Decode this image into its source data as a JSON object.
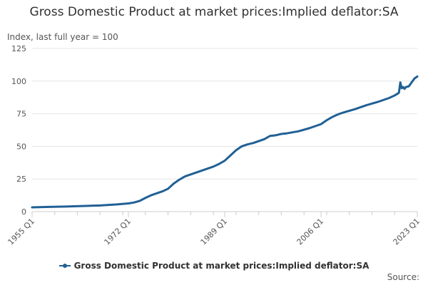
{
  "chart_data": {
    "type": "line",
    "title": "Gross Domestic Product at market prices:Implied deflator:SA",
    "ylabel": "Index, last full year = 100",
    "xlabel": "",
    "ylim": [
      0,
      125
    ],
    "y_ticks": [
      0,
      25,
      50,
      75,
      100,
      125
    ],
    "x_range": [
      1955.0,
      2023.0
    ],
    "x_ticks": [
      {
        "label": "1955 Q1",
        "x": 1955.0
      },
      {
        "label": "1972 Q1",
        "x": 1972.0
      },
      {
        "label": "1989 Q1",
        "x": 1989.0
      },
      {
        "label": "2006 Q1",
        "x": 2006.0
      },
      {
        "label": "2023 Q1",
        "x": 2023.0
      }
    ],
    "grid": true,
    "legend_position": "bottom",
    "series": [
      {
        "name": "Gross Domestic Product at market prices:Implied deflator:SA",
        "color": "#206095",
        "x": [
          1955,
          1958,
          1961,
          1964,
          1967,
          1970,
          1972,
          1973,
          1974,
          1975,
          1976,
          1977,
          1978,
          1979,
          1980,
          1981,
          1982,
          1983,
          1984,
          1985,
          1986,
          1987,
          1988,
          1989,
          1990,
          1991,
          1992,
          1993,
          1994,
          1995,
          1996,
          1997,
          1998,
          1999,
          2000,
          2002,
          2004,
          2006,
          2007,
          2008,
          2009,
          2010,
          2012,
          2014,
          2016,
          2018,
          2019,
          2019.75,
          2020.0,
          2020.25,
          2020.5,
          2020.75,
          2021.0,
          2021.5,
          2022.0,
          2022.5,
          2023.0
        ],
        "y": [
          3.3,
          3.6,
          3.9,
          4.3,
          4.7,
          5.5,
          6.3,
          7.0,
          8.2,
          10.5,
          12.5,
          14.0,
          15.5,
          17.5,
          21.5,
          24.5,
          27.0,
          28.5,
          30.0,
          31.5,
          33.0,
          34.5,
          36.5,
          39.0,
          43.0,
          47.0,
          50.0,
          51.5,
          52.5,
          54.0,
          55.5,
          58.0,
          58.5,
          59.5,
          60.0,
          61.5,
          64.0,
          67.0,
          70.0,
          72.5,
          74.5,
          76.0,
          78.5,
          81.5,
          84.0,
          87.0,
          89.0,
          91.0,
          99.0,
          94.5,
          95.5,
          94.0,
          95.5,
          96.0,
          99.0,
          102.0,
          103.5
        ]
      }
    ]
  },
  "legend": {
    "label": "Gross Domestic Product at market prices:Implied deflator:SA"
  },
  "footer": {
    "source": "Source:"
  }
}
